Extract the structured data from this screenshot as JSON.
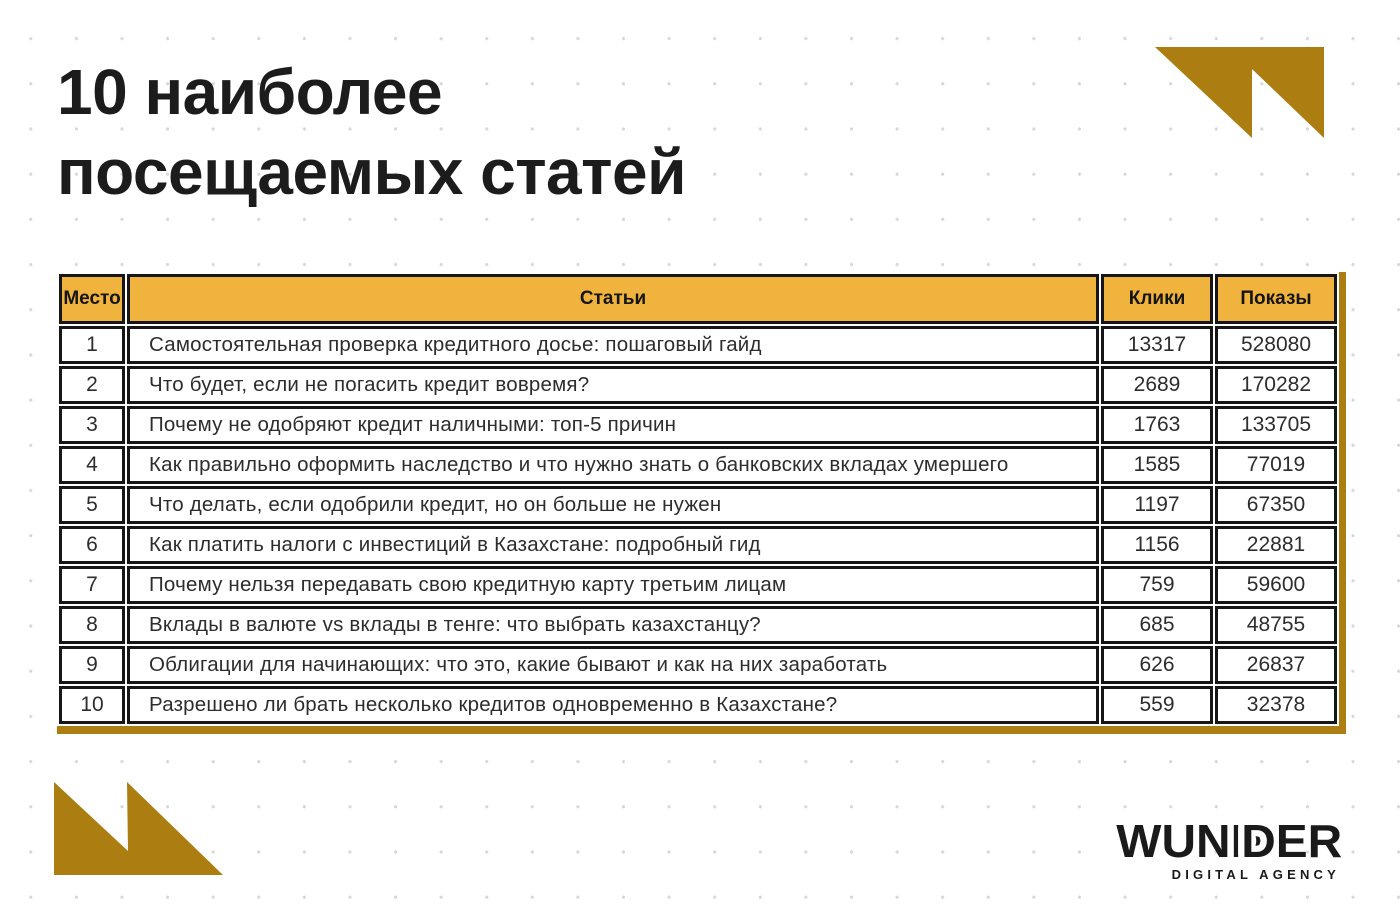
{
  "title": {
    "line1": "10 наиболее",
    "line2": "посещаемых статей"
  },
  "table": {
    "headers": [
      "Место",
      "Статьи",
      "Клики",
      "Показы"
    ],
    "rows": [
      {
        "rank": "1",
        "article": "Самостоятельная проверка кредитного досье: пошаговый гайд",
        "clicks": "13317",
        "views": "528080"
      },
      {
        "rank": "2",
        "article": "Что будет, если не погасить кредит вовремя?",
        "clicks": "2689",
        "views": "170282"
      },
      {
        "rank": "3",
        "article": "Почему не одобряют кредит наличными: топ-5 причин",
        "clicks": "1763",
        "views": "133705"
      },
      {
        "rank": "4",
        "article": "Как правильно оформить наследство и что нужно знать о банковских вкладах  умершего",
        "clicks": "1585",
        "views": "77019"
      },
      {
        "rank": "5",
        "article": "Что делать, если одобрили кредит, но он больше не нужен",
        "clicks": "1197",
        "views": "67350"
      },
      {
        "rank": "6",
        "article": "Как платить налоги с инвестиций в Казахстане: подробный гид",
        "clicks": "1156",
        "views": "22881"
      },
      {
        "rank": "7",
        "article": "Почему нельзя передавать свою кредитную карту третьим лицам",
        "clicks": "759",
        "views": "59600"
      },
      {
        "rank": "8",
        "article": "Вклады в валюте vs вклады в тенге: что выбрать казахстанцу?",
        "clicks": "685",
        "views": "48755"
      },
      {
        "rank": "9",
        "article": "Облигации для начинающих: что это, какие бывают и как на них заработать",
        "clicks": "626",
        "views": "26837"
      },
      {
        "rank": "10",
        "article": "Разрешено ли брать несколько кредитов одновременно в Казахстане?",
        "clicks": "559",
        "views": "32378"
      }
    ]
  },
  "logo": {
    "brand": "WUNDER",
    "brand_parts": [
      "WUN",
      "D",
      "D",
      "ER"
    ],
    "tagline": "DIGITAL AGENCY"
  },
  "colors": {
    "amber": "#f0b43e",
    "gold": "#ac7d10",
    "ink": "#1c1c1c"
  }
}
